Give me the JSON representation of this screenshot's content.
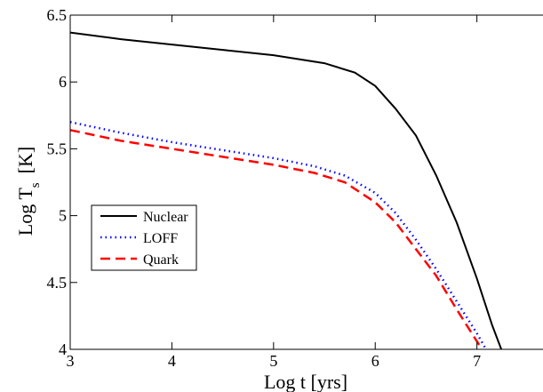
{
  "chart_data": {
    "type": "line",
    "title": "",
    "xlabel": "Log t [yrs]",
    "ylabel_main": "Log T",
    "ylabel_sub": "s",
    "ylabel_unit": "[K]",
    "xlim": [
      3,
      7.65
    ],
    "ylim": [
      4,
      6.5
    ],
    "xticks": [
      3,
      4,
      5,
      6,
      7
    ],
    "yticks": [
      4,
      4.5,
      5,
      5.5,
      6,
      6.5
    ],
    "xtick_labels": [
      "3",
      "4",
      "5",
      "6",
      "7"
    ],
    "ytick_labels": [
      "4",
      "4.5",
      "5",
      "5.5",
      "6",
      "6.5"
    ],
    "grid": false,
    "legend_position": "center-left",
    "series": [
      {
        "name": "Nuclear",
        "color": "#000000",
        "style": "solid",
        "points": [
          [
            3.0,
            6.37
          ],
          [
            3.5,
            6.32
          ],
          [
            4.0,
            6.28
          ],
          [
            4.5,
            6.24
          ],
          [
            5.0,
            6.2
          ],
          [
            5.5,
            6.14
          ],
          [
            5.8,
            6.07
          ],
          [
            6.0,
            5.97
          ],
          [
            6.2,
            5.8
          ],
          [
            6.4,
            5.6
          ],
          [
            6.6,
            5.3
          ],
          [
            6.8,
            4.95
          ],
          [
            7.0,
            4.53
          ],
          [
            7.15,
            4.18
          ],
          [
            7.24,
            4.0
          ]
        ]
      },
      {
        "name": "LOFF",
        "color": "#0000ff",
        "style": "dotted",
        "points": [
          [
            3.0,
            5.7
          ],
          [
            3.5,
            5.62
          ],
          [
            4.0,
            5.55
          ],
          [
            4.5,
            5.49
          ],
          [
            5.0,
            5.43
          ],
          [
            5.4,
            5.37
          ],
          [
            5.7,
            5.3
          ],
          [
            6.0,
            5.17
          ],
          [
            6.2,
            5.02
          ],
          [
            6.4,
            4.82
          ],
          [
            6.6,
            4.6
          ],
          [
            6.8,
            4.36
          ],
          [
            7.0,
            4.12
          ],
          [
            7.09,
            4.0
          ]
        ]
      },
      {
        "name": "Quark",
        "color": "#ff0000",
        "style": "dashed",
        "points": [
          [
            3.0,
            5.64
          ],
          [
            3.5,
            5.56
          ],
          [
            4.0,
            5.5
          ],
          [
            4.5,
            5.44
          ],
          [
            5.0,
            5.38
          ],
          [
            5.4,
            5.32
          ],
          [
            5.7,
            5.25
          ],
          [
            6.0,
            5.1
          ],
          [
            6.2,
            4.95
          ],
          [
            6.4,
            4.75
          ],
          [
            6.6,
            4.55
          ],
          [
            6.8,
            4.3
          ],
          [
            6.95,
            4.12
          ],
          [
            7.05,
            4.0
          ]
        ]
      }
    ]
  }
}
